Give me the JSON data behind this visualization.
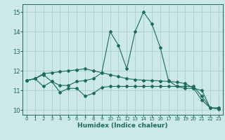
{
  "xlabel": "Humidex (Indice chaleur)",
  "bg_color": "#cce8e8",
  "grid_color": "#aacece",
  "line_color": "#1a6b5a",
  "x_ticks": [
    0,
    1,
    2,
    3,
    4,
    5,
    6,
    7,
    8,
    9,
    10,
    11,
    12,
    13,
    14,
    15,
    16,
    17,
    18,
    19,
    20,
    21,
    22,
    23
  ],
  "y_ticks": [
    10,
    11,
    12,
    13,
    14,
    15
  ],
  "ylim": [
    9.75,
    15.4
  ],
  "xlim": [
    -0.5,
    23.5
  ],
  "series_jagged_x": [
    0,
    1,
    2,
    3,
    4,
    5,
    6,
    7,
    8,
    9,
    10,
    11,
    12,
    13,
    14,
    15,
    16,
    17,
    18,
    19,
    20,
    21,
    22,
    23
  ],
  "series_jagged_y": [
    11.5,
    11.6,
    11.2,
    11.45,
    10.9,
    11.1,
    11.1,
    10.7,
    10.85,
    11.15,
    11.2,
    11.2,
    11.2,
    11.2,
    11.2,
    11.2,
    11.2,
    11.2,
    11.2,
    11.1,
    11.1,
    11.0,
    10.1,
    10.1
  ],
  "series_peak_x": [
    0,
    1,
    2,
    3,
    4,
    5,
    6,
    7,
    8,
    9,
    10,
    11,
    12,
    13,
    14,
    15,
    16,
    17,
    18,
    19,
    20,
    21,
    22,
    23
  ],
  "series_peak_y": [
    11.5,
    11.6,
    11.8,
    11.45,
    11.25,
    11.25,
    11.45,
    11.5,
    11.6,
    11.9,
    14.0,
    13.3,
    12.1,
    14.0,
    15.0,
    14.4,
    13.2,
    11.5,
    11.2,
    11.2,
    11.2,
    10.7,
    10.1,
    10.1
  ],
  "series_smooth_x": [
    0,
    1,
    2,
    3,
    4,
    5,
    6,
    7,
    8,
    9,
    10,
    11,
    12,
    13,
    14,
    15,
    16,
    17,
    18,
    19,
    20,
    21,
    22,
    23
  ],
  "series_smooth_y": [
    11.5,
    11.6,
    11.85,
    11.9,
    11.95,
    12.0,
    12.05,
    12.1,
    12.0,
    11.9,
    11.8,
    11.7,
    11.6,
    11.55,
    11.52,
    11.5,
    11.48,
    11.45,
    11.42,
    11.35,
    11.1,
    10.5,
    10.1,
    10.05
  ]
}
